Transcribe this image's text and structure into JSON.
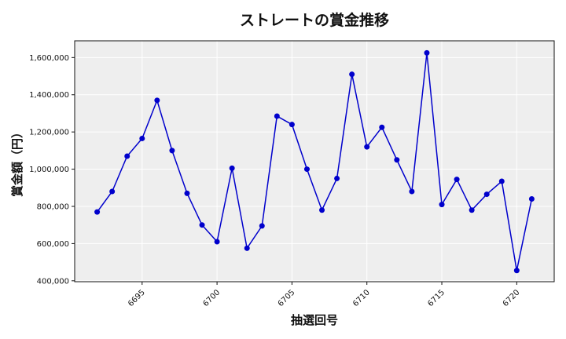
{
  "chart_data": {
    "type": "line",
    "title": "ストレートの賞金推移",
    "xlabel": "抽選回号",
    "ylabel": "賞金額（円）",
    "xlim": [
      6690.5,
      6722.5
    ],
    "ylim": [
      395000,
      1690000
    ],
    "x_ticks": [
      6695,
      6700,
      6705,
      6710,
      6715,
      6720
    ],
    "y_ticks": [
      400000,
      600000,
      800000,
      1000000,
      1200000,
      1400000,
      1600000
    ],
    "y_tick_labels": [
      "400,000",
      "600,000",
      "800,000",
      "1,000,000",
      "1,200,000",
      "1,400,000",
      "1,600,000"
    ],
    "grid": true,
    "colors": {
      "series": "#0000cc",
      "plot_background": "#eeeeee",
      "grid": "#ffffff"
    },
    "series": [
      {
        "x": [
          6692,
          6693,
          6694,
          6695,
          6696,
          6697,
          6698,
          6699,
          6700,
          6701,
          6702,
          6703,
          6704,
          6705,
          6706,
          6707,
          6708,
          6709,
          6710,
          6711,
          6712,
          6713,
          6714,
          6715,
          6716,
          6717,
          6718,
          6719,
          6720,
          6721
        ],
        "y": [
          770000,
          880000,
          1070000,
          1165000,
          1370000,
          1100000,
          870000,
          700000,
          610000,
          1005000,
          575000,
          695000,
          1285000,
          1240000,
          1000000,
          780000,
          950000,
          1510000,
          1120000,
          1225000,
          1050000,
          880000,
          1625000,
          810000,
          945000,
          780000,
          865000,
          935000,
          455000,
          840000
        ]
      }
    ]
  }
}
